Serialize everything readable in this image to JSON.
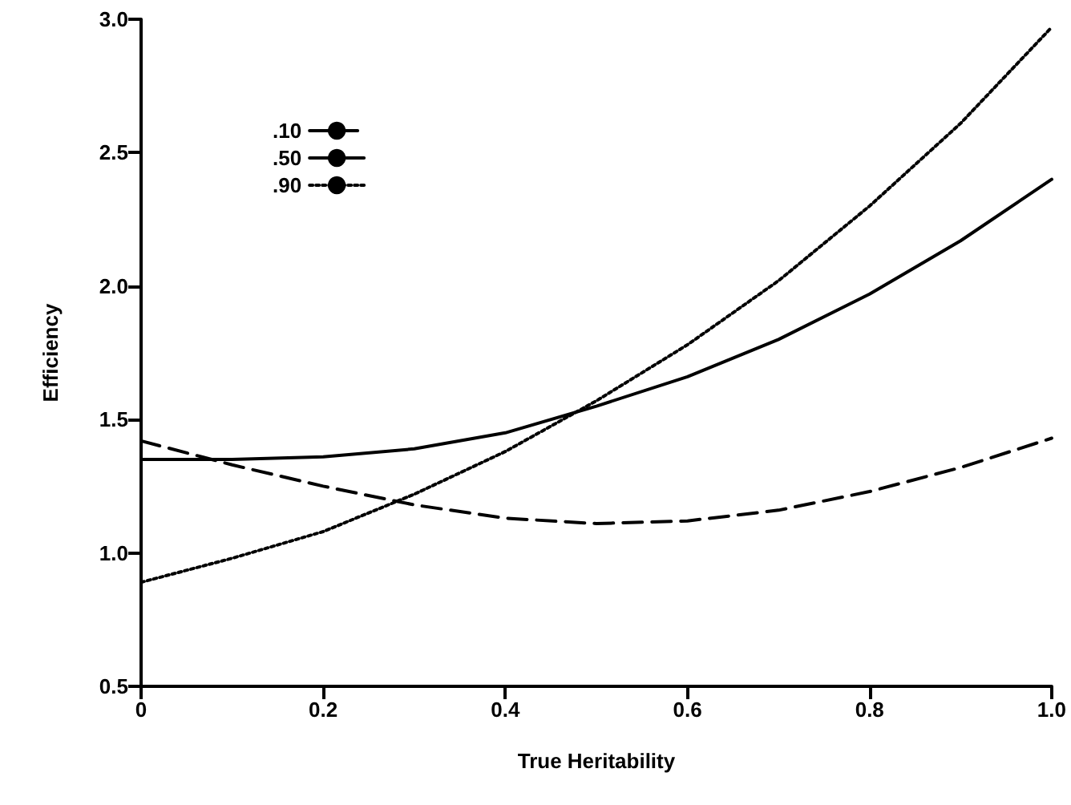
{
  "chart_data": {
    "type": "line",
    "xlabel": "True Heritability",
    "ylabel": "Efficiency",
    "x": [
      0,
      0.1,
      0.2,
      0.3,
      0.4,
      0.5,
      0.6,
      0.7,
      0.8,
      0.9,
      1.0
    ],
    "series": [
      {
        "name": ".10",
        "color": "#000000",
        "line_style": "dashed",
        "values": [
          1.42,
          1.33,
          1.25,
          1.18,
          1.13,
          1.11,
          1.12,
          1.16,
          1.23,
          1.32,
          1.43
        ]
      },
      {
        "name": ".50",
        "color": "#000000",
        "line_style": "solid",
        "values": [
          1.35,
          1.35,
          1.36,
          1.39,
          1.45,
          1.55,
          1.66,
          1.8,
          1.97,
          2.17,
          2.4
        ]
      },
      {
        "name": ".90",
        "color": "#000000",
        "line_style": "dotted",
        "values": [
          0.89,
          0.98,
          1.08,
          1.22,
          1.38,
          1.57,
          1.78,
          2.02,
          2.3,
          2.61,
          2.97
        ]
      }
    ],
    "xlim": [
      0,
      1
    ],
    "xticks": [
      0,
      0.2,
      0.4,
      0.6,
      0.8,
      {
        "value": 1,
        "label": "1.0"
      }
    ],
    "ylim": [
      0.5,
      3
    ],
    "yticks": [
      0.5,
      {
        "value": 1,
        "label": "1.0"
      },
      1.5,
      {
        "value": 2,
        "label": "2.0"
      },
      2.5,
      {
        "value": 3,
        "label": "3.0"
      }
    ],
    "grid": false,
    "legend": "top left",
    "marker": "none"
  }
}
